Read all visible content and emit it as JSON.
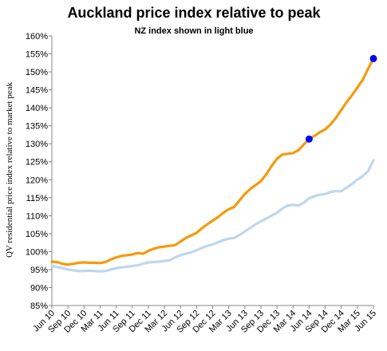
{
  "chart_data": {
    "type": "line",
    "title": "Auckland price index relative to peak",
    "subtitle": "NZ index shown in light blue",
    "y_label": "QV residential price index relative to market peak",
    "categories": [
      "Jun 10",
      null,
      null,
      "Sep 10",
      null,
      null,
      "Dec 10",
      null,
      null,
      "Mar 11",
      null,
      null,
      "Jun 11",
      null,
      null,
      "Sep 11",
      null,
      null,
      "Dec 11",
      null,
      null,
      "Mar 12",
      null,
      null,
      "Jun 12",
      null,
      null,
      "Sep 12",
      null,
      null,
      "Dec 12",
      null,
      null,
      "Mar 13",
      null,
      null,
      "Jun 13",
      null,
      null,
      "Sep 13",
      null,
      null,
      "Dec 13",
      null,
      null,
      "Mar 14",
      null,
      null,
      "Jun 14",
      null,
      null,
      "Sep 14",
      null,
      null,
      "Dec 14",
      null,
      null,
      "Mar 15",
      null,
      null,
      "Jun 15"
    ],
    "series": [
      {
        "color": "#bdd7ee",
        "values": [
          96.0,
          95.7,
          95.4,
          95.0,
          94.8,
          94.6,
          94.6,
          94.7,
          94.6,
          94.5,
          94.6,
          95.0,
          95.4,
          95.6,
          95.8,
          96.0,
          96.2,
          96.6,
          97.0,
          97.1,
          97.2,
          97.4,
          97.6,
          98.4,
          99.0,
          99.4,
          99.8,
          100.4,
          101.0,
          101.6,
          102.0,
          102.6,
          103.2,
          103.6,
          103.8,
          104.6,
          105.6,
          106.6,
          107.6,
          108.4,
          109.2,
          110.0,
          110.8,
          112.0,
          112.8,
          113.0,
          112.8,
          113.6,
          114.8,
          115.4,
          115.8,
          116.0,
          116.6,
          116.8,
          116.8,
          117.8,
          118.8,
          120.0,
          121.0,
          122.4,
          125.4
        ]
      },
      {
        "color": "#f59a0c",
        "marker_color": "#0000ff",
        "markers": [
          48,
          60
        ],
        "values": [
          97.2,
          97.1,
          96.6,
          96.4,
          96.6,
          96.9,
          97.0,
          96.9,
          96.9,
          96.8,
          97.1,
          97.8,
          98.4,
          98.8,
          99.0,
          99.2,
          99.6,
          99.4,
          100.2,
          100.8,
          101.2,
          101.4,
          101.6,
          101.8,
          102.8,
          103.8,
          104.5,
          105.2,
          106.5,
          107.6,
          108.6,
          109.6,
          110.8,
          111.8,
          112.4,
          114.2,
          116.0,
          117.4,
          118.5,
          119.6,
          121.5,
          123.8,
          125.8,
          127.0,
          127.2,
          127.4,
          128.2,
          129.8,
          131.3,
          132.2,
          133.2,
          134.0,
          135.4,
          137.2,
          139.4,
          141.6,
          143.5,
          145.6,
          147.8,
          150.8,
          153.7
        ]
      }
    ],
    "ylim": [
      85,
      160
    ],
    "yticks": [
      {
        "value": 85,
        "label": "85%"
      },
      {
        "value": 90,
        "label": "90%"
      },
      {
        "value": 95,
        "label": "95%"
      },
      {
        "value": 100,
        "label": "100%"
      },
      {
        "value": 105,
        "label": "105%"
      },
      {
        "value": 110,
        "label": "110%"
      },
      {
        "value": 115,
        "label": "115%"
      },
      {
        "value": 120,
        "label": "120%"
      },
      {
        "value": 125,
        "label": "125%"
      },
      {
        "value": 130,
        "label": "130%"
      },
      {
        "value": 135,
        "label": "135%"
      },
      {
        "value": 140,
        "label": "140%"
      },
      {
        "value": 145,
        "label": "145%"
      },
      {
        "value": 150,
        "label": "150%"
      },
      {
        "value": 155,
        "label": "155%"
      },
      {
        "value": 160,
        "label": "160%"
      }
    ],
    "grid": false
  }
}
